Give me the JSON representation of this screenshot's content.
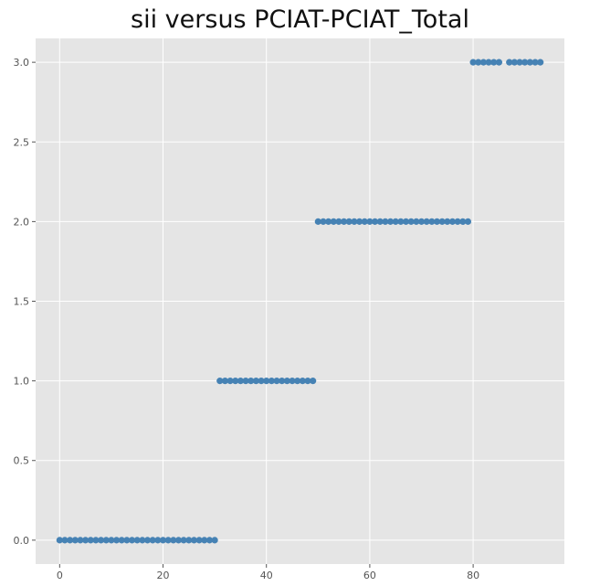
{
  "chart_data": {
    "type": "scatter",
    "title": "sii versus PCIAT-PCIAT_Total",
    "xlabel": "",
    "ylabel": "",
    "xlim": [
      -4.65,
      97.65
    ],
    "ylim": [
      -0.15,
      3.15
    ],
    "xticks": [
      0,
      20,
      40,
      60,
      80
    ],
    "xtick_labels": [
      "0",
      "20",
      "40",
      "60",
      "80"
    ],
    "yticks": [
      0.0,
      0.5,
      1.0,
      1.5,
      2.0,
      2.5,
      3.0
    ],
    "ytick_labels": [
      "0.0",
      "0.5",
      "1.0",
      "1.5",
      "2.0",
      "2.5",
      "3.0"
    ],
    "grid": true,
    "colors": {
      "background": "#e5e5e5",
      "grid": "#ffffff",
      "marker": "#4682b4",
      "tick": "#555555"
    },
    "points": [
      {
        "x": 0,
        "y": 0
      },
      {
        "x": 1,
        "y": 0
      },
      {
        "x": 2,
        "y": 0
      },
      {
        "x": 3,
        "y": 0
      },
      {
        "x": 4,
        "y": 0
      },
      {
        "x": 5,
        "y": 0
      },
      {
        "x": 6,
        "y": 0
      },
      {
        "x": 7,
        "y": 0
      },
      {
        "x": 8,
        "y": 0
      },
      {
        "x": 9,
        "y": 0
      },
      {
        "x": 10,
        "y": 0
      },
      {
        "x": 11,
        "y": 0
      },
      {
        "x": 12,
        "y": 0
      },
      {
        "x": 13,
        "y": 0
      },
      {
        "x": 14,
        "y": 0
      },
      {
        "x": 15,
        "y": 0
      },
      {
        "x": 16,
        "y": 0
      },
      {
        "x": 17,
        "y": 0
      },
      {
        "x": 18,
        "y": 0
      },
      {
        "x": 19,
        "y": 0
      },
      {
        "x": 20,
        "y": 0
      },
      {
        "x": 21,
        "y": 0
      },
      {
        "x": 22,
        "y": 0
      },
      {
        "x": 23,
        "y": 0
      },
      {
        "x": 24,
        "y": 0
      },
      {
        "x": 25,
        "y": 0
      },
      {
        "x": 26,
        "y": 0
      },
      {
        "x": 27,
        "y": 0
      },
      {
        "x": 28,
        "y": 0
      },
      {
        "x": 29,
        "y": 0
      },
      {
        "x": 30,
        "y": 0
      },
      {
        "x": 31,
        "y": 1
      },
      {
        "x": 32,
        "y": 1
      },
      {
        "x": 33,
        "y": 1
      },
      {
        "x": 34,
        "y": 1
      },
      {
        "x": 35,
        "y": 1
      },
      {
        "x": 36,
        "y": 1
      },
      {
        "x": 37,
        "y": 1
      },
      {
        "x": 38,
        "y": 1
      },
      {
        "x": 39,
        "y": 1
      },
      {
        "x": 40,
        "y": 1
      },
      {
        "x": 41,
        "y": 1
      },
      {
        "x": 42,
        "y": 1
      },
      {
        "x": 43,
        "y": 1
      },
      {
        "x": 44,
        "y": 1
      },
      {
        "x": 45,
        "y": 1
      },
      {
        "x": 46,
        "y": 1
      },
      {
        "x": 47,
        "y": 1
      },
      {
        "x": 48,
        "y": 1
      },
      {
        "x": 49,
        "y": 1
      },
      {
        "x": 50,
        "y": 2
      },
      {
        "x": 51,
        "y": 2
      },
      {
        "x": 52,
        "y": 2
      },
      {
        "x": 53,
        "y": 2
      },
      {
        "x": 54,
        "y": 2
      },
      {
        "x": 55,
        "y": 2
      },
      {
        "x": 56,
        "y": 2
      },
      {
        "x": 57,
        "y": 2
      },
      {
        "x": 58,
        "y": 2
      },
      {
        "x": 59,
        "y": 2
      },
      {
        "x": 60,
        "y": 2
      },
      {
        "x": 61,
        "y": 2
      },
      {
        "x": 62,
        "y": 2
      },
      {
        "x": 63,
        "y": 2
      },
      {
        "x": 64,
        "y": 2
      },
      {
        "x": 65,
        "y": 2
      },
      {
        "x": 66,
        "y": 2
      },
      {
        "x": 67,
        "y": 2
      },
      {
        "x": 68,
        "y": 2
      },
      {
        "x": 69,
        "y": 2
      },
      {
        "x": 70,
        "y": 2
      },
      {
        "x": 71,
        "y": 2
      },
      {
        "x": 72,
        "y": 2
      },
      {
        "x": 73,
        "y": 2
      },
      {
        "x": 74,
        "y": 2
      },
      {
        "x": 75,
        "y": 2
      },
      {
        "x": 76,
        "y": 2
      },
      {
        "x": 77,
        "y": 2
      },
      {
        "x": 78,
        "y": 2
      },
      {
        "x": 79,
        "y": 2
      },
      {
        "x": 80,
        "y": 3
      },
      {
        "x": 81,
        "y": 3
      },
      {
        "x": 82,
        "y": 3
      },
      {
        "x": 83,
        "y": 3
      },
      {
        "x": 84,
        "y": 3
      },
      {
        "x": 85,
        "y": 3
      },
      {
        "x": 87,
        "y": 3
      },
      {
        "x": 88,
        "y": 3
      },
      {
        "x": 89,
        "y": 3
      },
      {
        "x": 90,
        "y": 3
      },
      {
        "x": 91,
        "y": 3
      },
      {
        "x": 92,
        "y": 3
      },
      {
        "x": 93,
        "y": 3
      }
    ]
  }
}
